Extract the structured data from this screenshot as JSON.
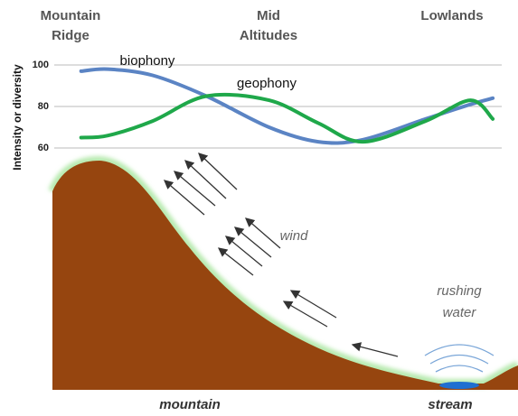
{
  "chart_data": {
    "type": "line",
    "y_label": "Intensity or diversity",
    "x": [
      6,
      12,
      22,
      34,
      48,
      59,
      69,
      83,
      93,
      98
    ],
    "xlim": [
      0,
      100
    ],
    "ylim": [
      57,
      103
    ],
    "yticks": [
      60,
      80,
      100
    ],
    "grid": true,
    "series": [
      {
        "name": "biophony",
        "color": "#5b84c4",
        "values": [
          97,
          98,
          95,
          85,
          70,
          63,
          64,
          74,
          81,
          84
        ]
      },
      {
        "name": "geophony",
        "color": "#1fa84a",
        "values": [
          65,
          66,
          73,
          85,
          83,
          72,
          63,
          73,
          83,
          74
        ]
      }
    ]
  },
  "zones": [
    [
      "Mountain",
      "Ridge"
    ],
    [
      "Mid",
      "Altitudes"
    ],
    [
      "Lowlands"
    ]
  ],
  "labels": {
    "wind": "wind",
    "water": [
      "rushing",
      "water"
    ],
    "mountain": "mountain",
    "stream": "stream"
  }
}
